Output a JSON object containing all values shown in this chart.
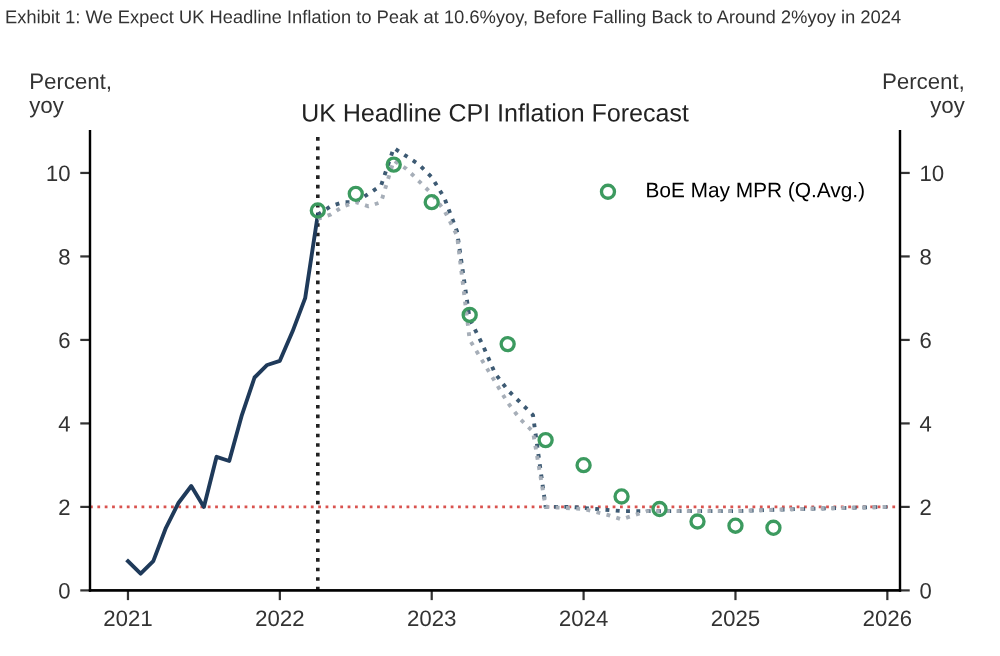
{
  "chart_data": {
    "type": "line",
    "title": "Exhibit 1: We Expect UK Headline Inflation to Peak at 10.6%yoy, Before Falling Back to Around 2%yoy in 2024",
    "subtitle": "UK Headline CPI Inflation Forecast",
    "ylabel": "Percent,\nyoy",
    "y2label": "Percent,\nyoy",
    "series": [
      {
        "color": "#1f3a5a",
        "line_style": "solid",
        "x": [
          "2021-01",
          "2021-02",
          "2021-03",
          "2021-04",
          "2021-05",
          "2021-06",
          "2021-07",
          "2021-08",
          "2021-09",
          "2021-10",
          "2021-11",
          "2021-12",
          "2022-01",
          "2022-02",
          "2022-03",
          "2022-04"
        ],
        "values": [
          0.7,
          0.4,
          0.7,
          1.5,
          2.1,
          2.5,
          2.0,
          3.2,
          3.1,
          4.2,
          5.1,
          5.4,
          5.5,
          6.2,
          7.0,
          9.0
        ]
      },
      {
        "color": "#3d5a73",
        "line_style": "dotted",
        "x": [
          "2022-04",
          "2022-05",
          "2022-06",
          "2022-07",
          "2022-08",
          "2022-09",
          "2022-10",
          "2022-11",
          "2022-12",
          "2023-01",
          "2023-02",
          "2023-03",
          "2023-04",
          "2023-05",
          "2023-06",
          "2023-07",
          "2023-08",
          "2023-09",
          "2023-10",
          "2023-12",
          "2024-02",
          "2024-04",
          "2024-06",
          "2024-09",
          "2025-01",
          "2025-06",
          "2026-01"
        ],
        "values": [
          9.0,
          9.2,
          9.3,
          9.3,
          9.5,
          9.7,
          10.6,
          10.4,
          10.2,
          9.9,
          9.4,
          8.6,
          6.5,
          5.9,
          5.2,
          4.8,
          4.5,
          4.2,
          2.0,
          2.0,
          1.95,
          1.9,
          1.9,
          1.9,
          1.9,
          1.95,
          2.0
        ]
      },
      {
        "color": "#a6aeb8",
        "line_style": "dotted",
        "x": [
          "2022-04",
          "2022-05",
          "2022-06",
          "2022-07",
          "2022-08",
          "2022-09",
          "2022-10",
          "2022-11",
          "2022-12",
          "2023-01",
          "2023-02",
          "2023-03",
          "2023-04",
          "2023-05",
          "2023-06",
          "2023-07",
          "2023-08",
          "2023-09",
          "2023-10",
          "2024-01",
          "2024-03",
          "2024-04",
          "2024-06",
          "2024-09",
          "2025-01",
          "2025-06",
          "2026-01"
        ],
        "values": [
          8.9,
          9.0,
          9.2,
          9.3,
          9.2,
          9.3,
          10.3,
          10.1,
          9.8,
          9.5,
          9.1,
          8.5,
          6.0,
          5.5,
          5.0,
          4.5,
          4.1,
          3.8,
          2.0,
          1.95,
          1.8,
          1.7,
          1.9,
          1.9,
          1.9,
          1.95,
          2.0
        ]
      },
      {
        "name": "BoE May MPR (Q.Avg.)",
        "type": "scatter",
        "marker": "circle",
        "color": "#3c9a5f",
        "x": [
          "2022-04",
          "2022-07",
          "2022-10",
          "2023-01",
          "2023-04",
          "2023-07",
          "2023-10",
          "2024-01",
          "2024-04",
          "2024-07",
          "2024-10",
          "2025-01",
          "2025-04"
        ],
        "values": [
          9.1,
          9.5,
          10.2,
          9.3,
          6.6,
          5.9,
          3.6,
          3.0,
          2.25,
          1.95,
          1.65,
          1.55,
          1.5
        ]
      }
    ],
    "xlim": [
      "2020-10",
      "2026-02"
    ],
    "xticks": [
      "2021",
      "2022",
      "2023",
      "2024",
      "2025",
      "2026"
    ],
    "ylim": [
      0,
      11
    ],
    "yticks": [
      0,
      2,
      4,
      6,
      8,
      10
    ],
    "y2lim": [
      0,
      11
    ],
    "y2ticks": [
      0,
      2,
      4,
      6,
      8,
      10
    ],
    "ref_lines": [
      {
        "axis": "y",
        "value": 2,
        "color": "#d9534f",
        "line_style": "dotted"
      },
      {
        "axis": "x",
        "value": "2022-04",
        "color": "#222222",
        "line_style": "dotted"
      }
    ],
    "grid": false,
    "legend": "top right"
  }
}
